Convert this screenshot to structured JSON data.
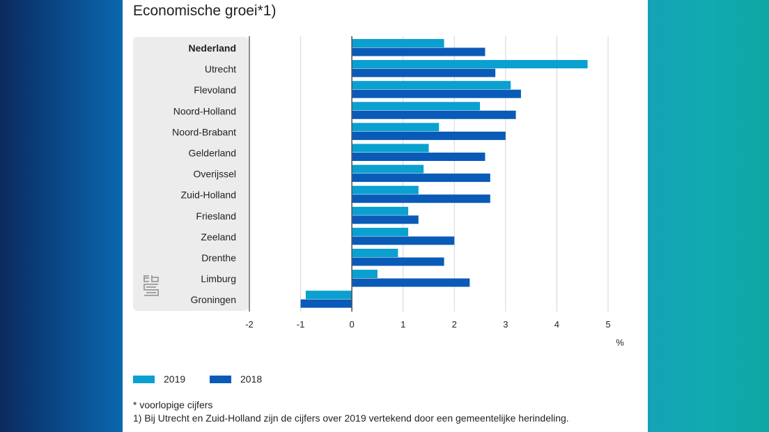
{
  "title": "Economische groei*1)",
  "chart_data": {
    "type": "bar",
    "orientation": "horizontal",
    "title": "Economische groei*1)",
    "xlabel": "%",
    "ylabel": "",
    "xlim": [
      -2,
      5
    ],
    "x_ticks": [
      "-2",
      "-1",
      "0",
      "1",
      "2",
      "3",
      "4",
      "5"
    ],
    "grid": true,
    "legend_position": "bottom-left",
    "categories": [
      "Nederland",
      "Utrecht",
      "Flevoland",
      "Noord-Holland",
      "Noord-Brabant",
      "Gelderland",
      "Overijssel",
      "Zuid-Holland",
      "Friesland",
      "Zeeland",
      "Drenthe",
      "Limburg",
      "Groningen"
    ],
    "bold_category": "Nederland",
    "series": [
      {
        "name": "2019",
        "color": "#0aa0d0",
        "values": [
          1.8,
          4.6,
          3.1,
          2.5,
          1.7,
          1.5,
          1.4,
          1.3,
          1.1,
          1.1,
          0.9,
          0.5,
          -0.9
        ]
      },
      {
        "name": "2018",
        "color": "#0a5bb8",
        "values": [
          2.6,
          2.8,
          3.3,
          3.2,
          3.0,
          2.6,
          2.7,
          2.7,
          1.3,
          2.0,
          1.8,
          2.3,
          -1.0
        ]
      }
    ]
  },
  "footnotes": {
    "note1": "* voorlopige cijfers",
    "note2": "1) Bij Utrecht en Zuid-Holland zijn de cijfers over 2019 vertekend door een gemeentelijke herindeling."
  },
  "logo": {
    "name": "cbs-logo"
  }
}
